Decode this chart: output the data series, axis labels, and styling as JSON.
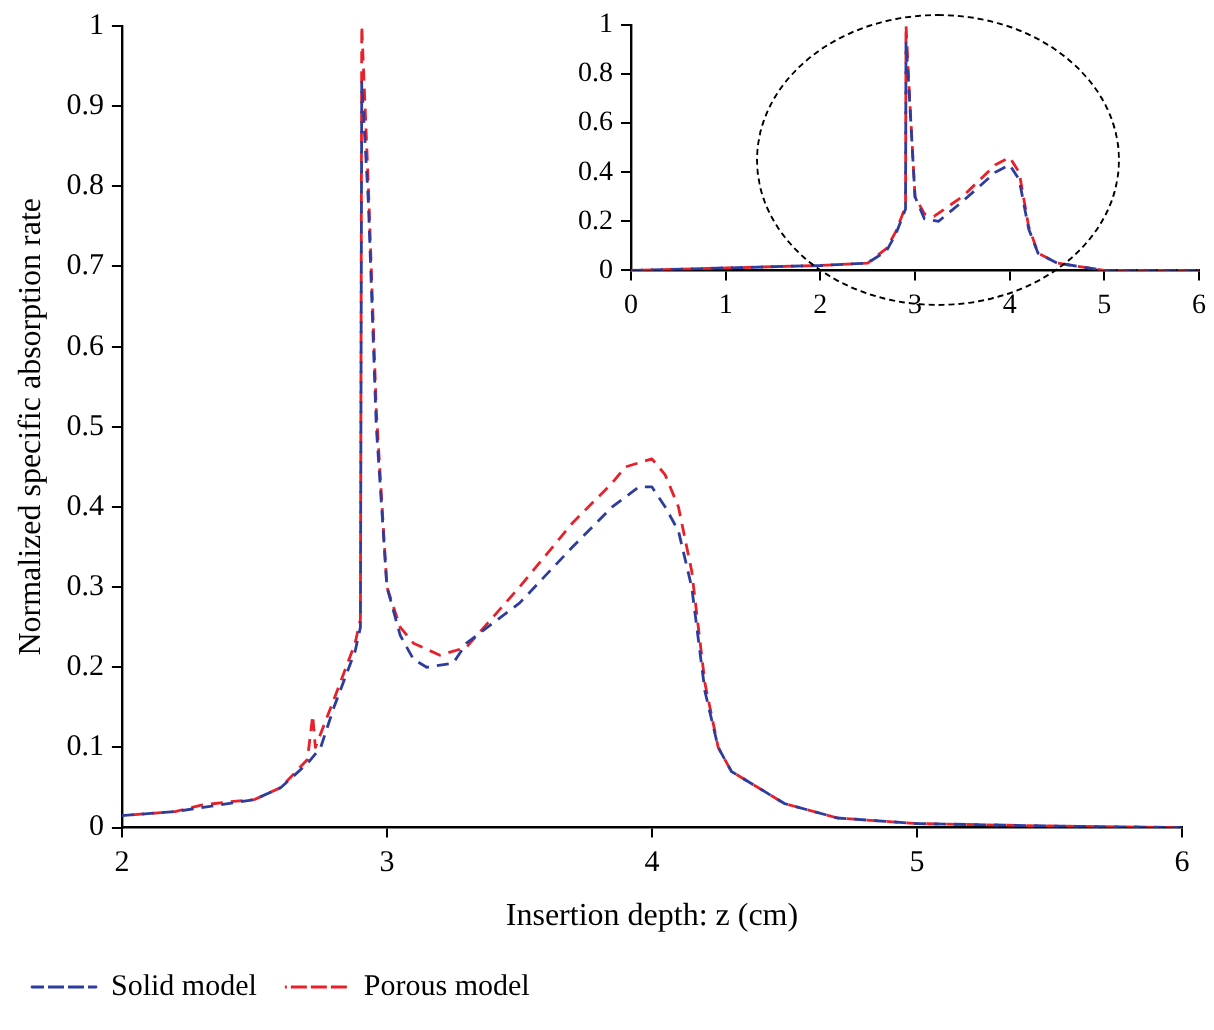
{
  "chart_data": [
    {
      "type": "line",
      "xlabel": "Insertion depth: z (cm)",
      "ylabel": "Normalized specific absorption rate",
      "xlim": [
        2,
        6
      ],
      "xticks": [
        2,
        3,
        4,
        5,
        6
      ],
      "ylim": [
        0,
        1
      ],
      "yticks": [
        0,
        0.1,
        0.2,
        0.3,
        0.4,
        0.5,
        0.6,
        0.7,
        0.8,
        0.9,
        1
      ],
      "grid": false,
      "legend": "bottom",
      "marker": "none",
      "line_style": "dashed",
      "series": [
        {
          "name": "Solid model",
          "color": "#2e3c9e",
          "x": [
            2,
            2.2,
            2.3,
            2.4,
            2.5,
            2.6,
            2.7,
            2.75,
            2.8,
            2.88,
            2.9,
            2.905,
            2.93,
            2.96,
            3.0,
            3.05,
            3.1,
            3.15,
            3.25,
            3.3,
            3.5,
            3.7,
            3.85,
            3.95,
            4.0,
            4.05,
            4.1,
            4.15,
            4.2,
            4.25,
            4.3,
            4.4,
            4.5,
            4.7,
            5,
            5.5,
            6
          ],
          "values": [
            0.015,
            0.02,
            0.025,
            0.03,
            0.035,
            0.05,
            0.08,
            0.1,
            0.15,
            0.22,
            0.25,
            0.93,
            0.78,
            0.5,
            0.3,
            0.24,
            0.21,
            0.2,
            0.205,
            0.23,
            0.28,
            0.35,
            0.4,
            0.425,
            0.425,
            0.4,
            0.37,
            0.3,
            0.17,
            0.1,
            0.07,
            0.05,
            0.03,
            0.012,
            0.005,
            0.002,
            0
          ]
        },
        {
          "name": "Porous model",
          "color": "#e8202a",
          "x": [
            2,
            2.2,
            2.3,
            2.4,
            2.5,
            2.6,
            2.7,
            2.72,
            2.73,
            2.8,
            2.88,
            2.9,
            2.905,
            2.93,
            2.96,
            3.0,
            3.05,
            3.1,
            3.2,
            3.3,
            3.5,
            3.7,
            3.85,
            3.9,
            4.0,
            4.05,
            4.1,
            4.15,
            4.2,
            4.25,
            4.3,
            4.4,
            4.5,
            4.7,
            5,
            5.5,
            6
          ],
          "values": [
            0.015,
            0.02,
            0.028,
            0.032,
            0.035,
            0.05,
            0.085,
            0.14,
            0.1,
            0.16,
            0.23,
            0.26,
            1.0,
            0.8,
            0.52,
            0.3,
            0.25,
            0.23,
            0.215,
            0.225,
            0.3,
            0.38,
            0.43,
            0.45,
            0.46,
            0.44,
            0.4,
            0.32,
            0.18,
            0.1,
            0.07,
            0.05,
            0.03,
            0.012,
            0.005,
            0.002,
            0
          ]
        }
      ]
    },
    {
      "type": "line",
      "xlim": [
        0,
        6
      ],
      "xticks": [
        0,
        1,
        2,
        3,
        4,
        5,
        6
      ],
      "ylim": [
        0,
        1
      ],
      "yticks": [
        0,
        0.2,
        0.4,
        0.6,
        0.8,
        1
      ],
      "grid": false,
      "legend": false,
      "marker": "none",
      "line_style": "dashed",
      "series": [
        {
          "color": "#2e3c9e",
          "x": [
            0,
            2,
            2.5,
            2.7,
            2.8,
            2.9,
            2.905,
            2.93,
            3.0,
            3.1,
            3.25,
            3.5,
            3.85,
            4.0,
            4.1,
            4.2,
            4.3,
            4.5,
            5,
            6
          ],
          "values": [
            0,
            0.02,
            0.03,
            0.08,
            0.15,
            0.25,
            0.93,
            0.78,
            0.3,
            0.21,
            0.2,
            0.28,
            0.4,
            0.43,
            0.37,
            0.17,
            0.07,
            0.03,
            0,
            0
          ]
        },
        {
          "color": "#e8202a",
          "x": [
            0,
            2,
            2.5,
            2.7,
            2.8,
            2.9,
            2.905,
            2.93,
            3.0,
            3.1,
            3.2,
            3.5,
            3.85,
            4.0,
            4.1,
            4.2,
            4.3,
            4.5,
            5,
            6
          ],
          "values": [
            0,
            0.02,
            0.03,
            0.09,
            0.16,
            0.26,
            1.0,
            0.8,
            0.3,
            0.23,
            0.22,
            0.3,
            0.43,
            0.46,
            0.4,
            0.18,
            0.07,
            0.03,
            0,
            0
          ]
        }
      ]
    }
  ]
}
